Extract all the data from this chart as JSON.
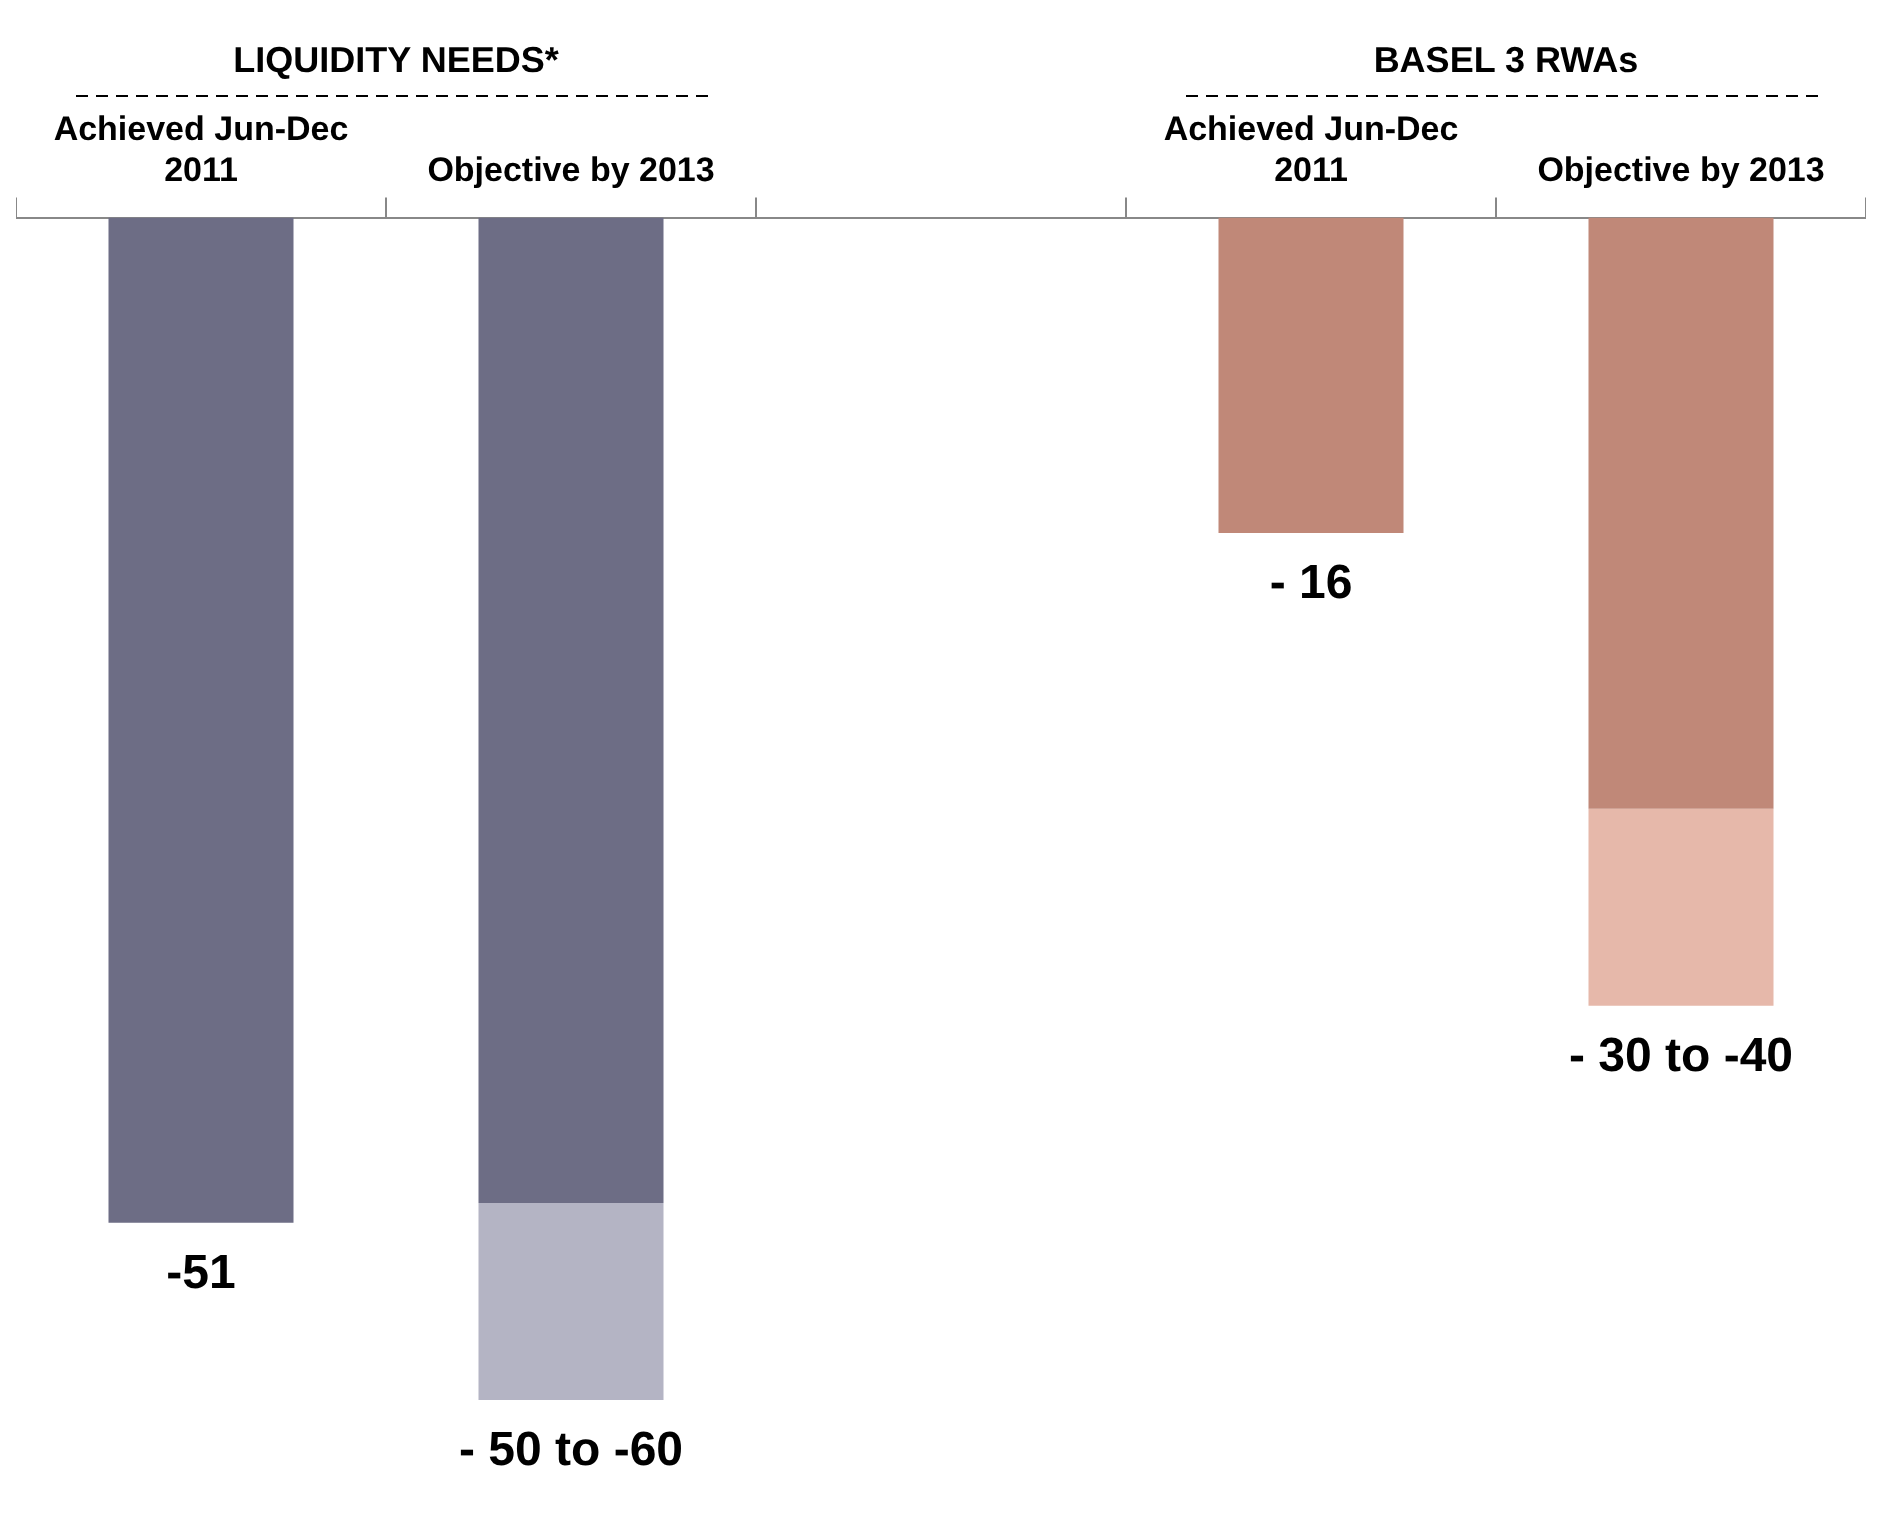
{
  "chart_data": {
    "type": "bar",
    "stacked": true,
    "categories": [
      "Achieved Jun-Dec 2011",
      "Objective by 2013",
      null,
      "Achieved Jun-Dec 2011",
      "Objective by 2013"
    ],
    "annotations": [
      "LIQUIDITY NEEDS*",
      "BASEL 3 RWAs"
    ],
    "tick_labels": "x",
    "series": [
      {
        "values": [
          -51,
          -50,
          null,
          -16,
          -30
        ],
        "colors": [
          "#6d6d85",
          "#6d6d85",
          null,
          "#c08878",
          "#c08878"
        ],
        "value_labels": [
          "-51",
          null,
          null,
          "- 16",
          null
        ]
      },
      {
        "values": [
          null,
          -10,
          null,
          null,
          -10
        ],
        "colors": [
          null,
          "#b4b4c4",
          null,
          null,
          "#e6b8aa"
        ],
        "value_labels": [
          null,
          "- 50 to -60",
          null,
          null,
          "- 30 to -40"
        ]
      }
    ]
  }
}
